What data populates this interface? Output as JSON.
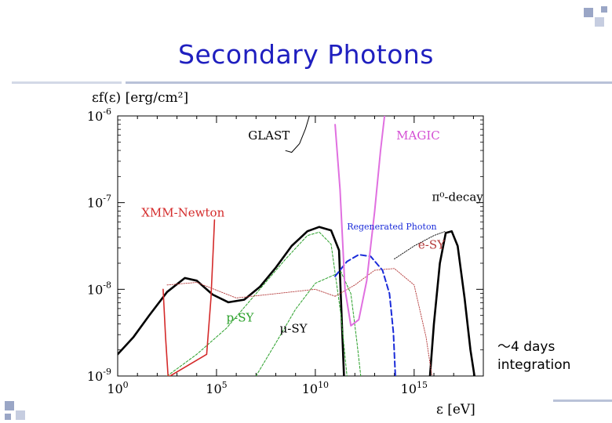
{
  "slide": {
    "title": "Secondary Photons",
    "note_line1": "～4 days",
    "note_line2": "integration"
  },
  "chart_data": {
    "type": "line",
    "title": "",
    "xlabel": "ε [eV]",
    "ylabel": "εf(ε) [erg/cm²]",
    "xscale": "log10",
    "yscale": "log10",
    "xlim": [
      0,
      18.5
    ],
    "ylim": [
      -9,
      -6
    ],
    "x_ticks": [
      {
        "value": 0,
        "base": "10",
        "exp": "0"
      },
      {
        "value": 5,
        "base": "10",
        "exp": "5"
      },
      {
        "value": 10,
        "base": "10",
        "exp": "10"
      },
      {
        "value": 15,
        "base": "10",
        "exp": "15"
      }
    ],
    "y_ticks": [
      {
        "value": -6,
        "base": "10",
        "exp": "-6"
      },
      {
        "value": -7,
        "base": "10",
        "exp": "-7"
      },
      {
        "value": -8,
        "base": "10",
        "exp": "-8"
      },
      {
        "value": -9,
        "base": "10",
        "exp": "-9"
      }
    ],
    "series": [
      {
        "name": "total",
        "color": "#000000",
        "width": 2.6,
        "dash": "",
        "points": [
          [
            0,
            -8.75
          ],
          [
            0.8,
            -8.55
          ],
          [
            1.6,
            -8.3
          ],
          [
            2.5,
            -8.03
          ],
          [
            3.4,
            -7.87
          ],
          [
            4.0,
            -7.9
          ],
          [
            4.8,
            -8.06
          ],
          [
            5.6,
            -8.15
          ],
          [
            6.4,
            -8.12
          ],
          [
            7.2,
            -7.97
          ],
          [
            8.0,
            -7.75
          ],
          [
            8.8,
            -7.5
          ],
          [
            9.6,
            -7.33
          ],
          [
            10.2,
            -7.28
          ],
          [
            10.8,
            -7.32
          ],
          [
            11.2,
            -7.55
          ],
          [
            11.45,
            -9.0
          ]
        ]
      },
      {
        "name": "total-high",
        "color": "#000000",
        "width": 2.6,
        "dash": "",
        "points": [
          [
            15.8,
            -9.0
          ],
          [
            16.0,
            -8.4
          ],
          [
            16.3,
            -7.7
          ],
          [
            16.6,
            -7.35
          ],
          [
            16.9,
            -7.33
          ],
          [
            17.2,
            -7.5
          ],
          [
            17.55,
            -8.1
          ],
          [
            17.85,
            -8.7
          ],
          [
            18.05,
            -9.0
          ]
        ]
      },
      {
        "name": "p-SY",
        "color": "#2aa02a",
        "width": 1,
        "dash": "3 2",
        "points": [
          [
            2.5,
            -9.0
          ],
          [
            4.0,
            -8.75
          ],
          [
            5.5,
            -8.45
          ],
          [
            7.0,
            -8.05
          ],
          [
            8.5,
            -7.65
          ],
          [
            9.6,
            -7.38
          ],
          [
            10.2,
            -7.34
          ],
          [
            10.8,
            -7.48
          ],
          [
            11.3,
            -8.3
          ],
          [
            11.6,
            -9.0
          ]
        ]
      },
      {
        "name": "mu-SY",
        "color": "#2aa02a",
        "width": 1,
        "dash": "3 2",
        "points": [
          [
            7.0,
            -9.0
          ],
          [
            8.0,
            -8.62
          ],
          [
            9.0,
            -8.23
          ],
          [
            10.0,
            -7.93
          ],
          [
            10.8,
            -7.85
          ],
          [
            11.3,
            -7.8
          ],
          [
            11.8,
            -8.05
          ],
          [
            12.1,
            -8.6
          ],
          [
            12.3,
            -9.0
          ]
        ]
      },
      {
        "name": "e-SY-low",
        "color": "#b43a3a",
        "width": 0.9,
        "dash": "1.5 1.5",
        "points": [
          [
            2.5,
            -7.95
          ],
          [
            4.0,
            -7.92
          ],
          [
            6.0,
            -8.1
          ],
          [
            8.0,
            -8.05
          ],
          [
            10.0,
            -8.0
          ],
          [
            11.0,
            -8.08
          ]
        ]
      },
      {
        "name": "e-SY-high",
        "color": "#b43a3a",
        "width": 0.9,
        "dash": "1.5 1.5",
        "points": [
          [
            11.0,
            -8.08
          ],
          [
            12.0,
            -7.95
          ],
          [
            13.0,
            -7.78
          ],
          [
            14.0,
            -7.76
          ],
          [
            15.0,
            -7.95
          ],
          [
            15.6,
            -8.55
          ],
          [
            15.9,
            -9.0
          ]
        ]
      },
      {
        "name": "pi0-decay",
        "color": "#000000",
        "width": 0.9,
        "dash": "1.5 1.5",
        "points": [
          [
            14.0,
            -7.65
          ],
          [
            15.0,
            -7.5
          ],
          [
            16.0,
            -7.38
          ],
          [
            16.6,
            -7.33
          ]
        ]
      },
      {
        "name": "Regenerated Photon",
        "color": "#1a2bd9",
        "width": 2,
        "dash": "7 4",
        "points": [
          [
            11.0,
            -7.85
          ],
          [
            11.6,
            -7.68
          ],
          [
            12.2,
            -7.6
          ],
          [
            12.8,
            -7.62
          ],
          [
            13.4,
            -7.78
          ],
          [
            13.75,
            -8.05
          ],
          [
            13.95,
            -8.5
          ],
          [
            14.05,
            -9.0
          ]
        ]
      },
      {
        "name": "XMM-Newton",
        "color": "#d42a2a",
        "width": 1.6,
        "dash": "",
        "points": [
          [
            2.3,
            -8.0
          ],
          [
            2.42,
            -8.55
          ],
          [
            2.55,
            -9.0
          ],
          [
            2.65,
            -9.0
          ],
          [
            4.5,
            -8.75
          ],
          [
            4.72,
            -8.1
          ],
          [
            4.85,
            -7.45
          ],
          [
            4.9,
            -7.2
          ]
        ]
      },
      {
        "name": "MAGIC",
        "color": "#e070e0",
        "width": 2,
        "dash": "",
        "points": [
          [
            11.0,
            -6.1
          ],
          [
            11.25,
            -6.85
          ],
          [
            11.5,
            -8.0
          ],
          [
            11.8,
            -8.42
          ],
          [
            12.2,
            -8.35
          ],
          [
            12.6,
            -7.9
          ],
          [
            13.0,
            -7.1
          ],
          [
            13.3,
            -6.4
          ],
          [
            13.5,
            -6.0
          ]
        ]
      },
      {
        "name": "GLAST",
        "color": "#000000",
        "width": 1,
        "dash": "",
        "points": [
          [
            8.5,
            -6.4
          ],
          [
            8.8,
            -6.42
          ],
          [
            9.2,
            -6.32
          ],
          [
            9.5,
            -6.15
          ],
          [
            9.7,
            -6.0
          ]
        ]
      }
    ],
    "annotations": [
      {
        "text": "GLAST",
        "x": 6.6,
        "y": -6.27,
        "color": "#000000"
      },
      {
        "text": "MAGIC",
        "x": 14.1,
        "y": -6.27,
        "color": "#d44fd4"
      },
      {
        "text": "π⁰-decay",
        "x": 15.9,
        "y": -6.98,
        "color": "#000000"
      },
      {
        "text": "XMM-Newton",
        "x": 1.2,
        "y": -7.16,
        "color": "#d42a2a"
      },
      {
        "text": "Regenerated Photon",
        "x": 11.6,
        "y": -7.31,
        "color": "#1a2bd9"
      },
      {
        "text": "e-SY",
        "x": 15.2,
        "y": -7.53,
        "color": "#b43a3a"
      },
      {
        "text": "p-SY",
        "x": 5.5,
        "y": -8.37,
        "color": "#2aa02a"
      },
      {
        "text": "μ-SY",
        "x": 8.2,
        "y": -8.5,
        "color": "#000000"
      }
    ]
  }
}
